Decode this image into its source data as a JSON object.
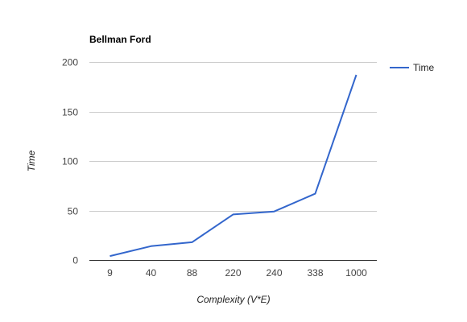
{
  "chart_data": {
    "type": "line",
    "title": "Bellman Ford",
    "xlabel": "Complexity (V*E)",
    "ylabel": "Time",
    "categories": [
      "9",
      "40",
      "88",
      "220",
      "240",
      "338",
      "1000"
    ],
    "series": [
      {
        "name": "Time",
        "values": [
          4,
          14,
          18,
          46,
          49,
          67,
          187
        ]
      }
    ],
    "ylim": [
      0,
      200
    ],
    "yticks": [
      "0",
      "50",
      "100",
      "150",
      "200"
    ],
    "grid": true,
    "legend": "right",
    "colors": {
      "series": "#3366cc",
      "grid": "#cccccc",
      "axis": "#333333"
    }
  }
}
